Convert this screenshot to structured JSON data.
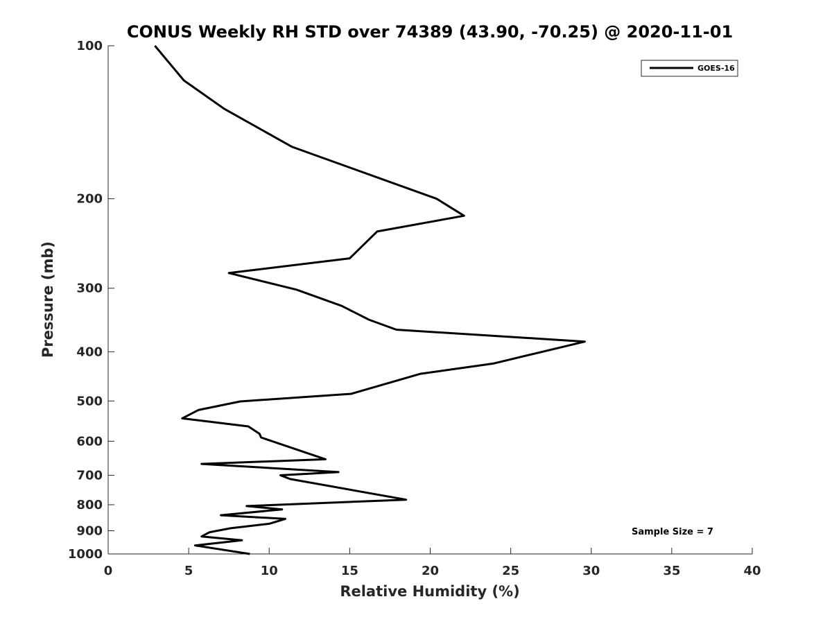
{
  "chart_data": {
    "type": "line",
    "title": "CONUS Weekly RH STD over 74389 (43.90, -70.25) @ 2020-11-01",
    "xlabel": "Relative Humidity (%)",
    "ylabel": "Pressure (mb)",
    "xlim": [
      0,
      40
    ],
    "ylim": [
      100,
      1000
    ],
    "yscale": "log",
    "y_reversed": true,
    "x_ticks": [
      "0",
      "5",
      "10",
      "15",
      "20",
      "25",
      "30",
      "35",
      "40"
    ],
    "y_ticks": [
      "100",
      "200",
      "300",
      "400",
      "500",
      "600",
      "700",
      "800",
      "900",
      "1000"
    ],
    "grid": false,
    "legend_position": "top-right",
    "annotation": "Sample Size = 7",
    "series": [
      {
        "name": "GOES-16",
        "color": "#000000",
        "x": [
          2.9,
          4.7,
          7.2,
          11.4,
          20.4,
          22.1,
          16.7,
          15.0,
          7.5,
          11.7,
          14.5,
          16.2,
          17.9,
          29.6,
          23.9,
          19.4,
          15.1,
          8.2,
          5.6,
          4.6,
          8.7,
          9.4,
          9.5,
          13.5,
          5.8,
          14.3,
          10.7,
          11.3,
          18.5,
          8.6,
          10.8,
          7.0,
          11.0,
          10.0,
          7.6,
          6.3,
          5.8,
          8.3,
          5.4,
          8.8
        ],
        "y": [
          100,
          117,
          133,
          158,
          200,
          216,
          232,
          262,
          280,
          302,
          325,
          346,
          362,
          382,
          422,
          442,
          484,
          501,
          521,
          541,
          561,
          580,
          590,
          651,
          665,
          690,
          700,
          712,
          782,
          805,
          817,
          839,
          853,
          872,
          890,
          906,
          924,
          940,
          962,
          1000
        ]
      }
    ]
  }
}
